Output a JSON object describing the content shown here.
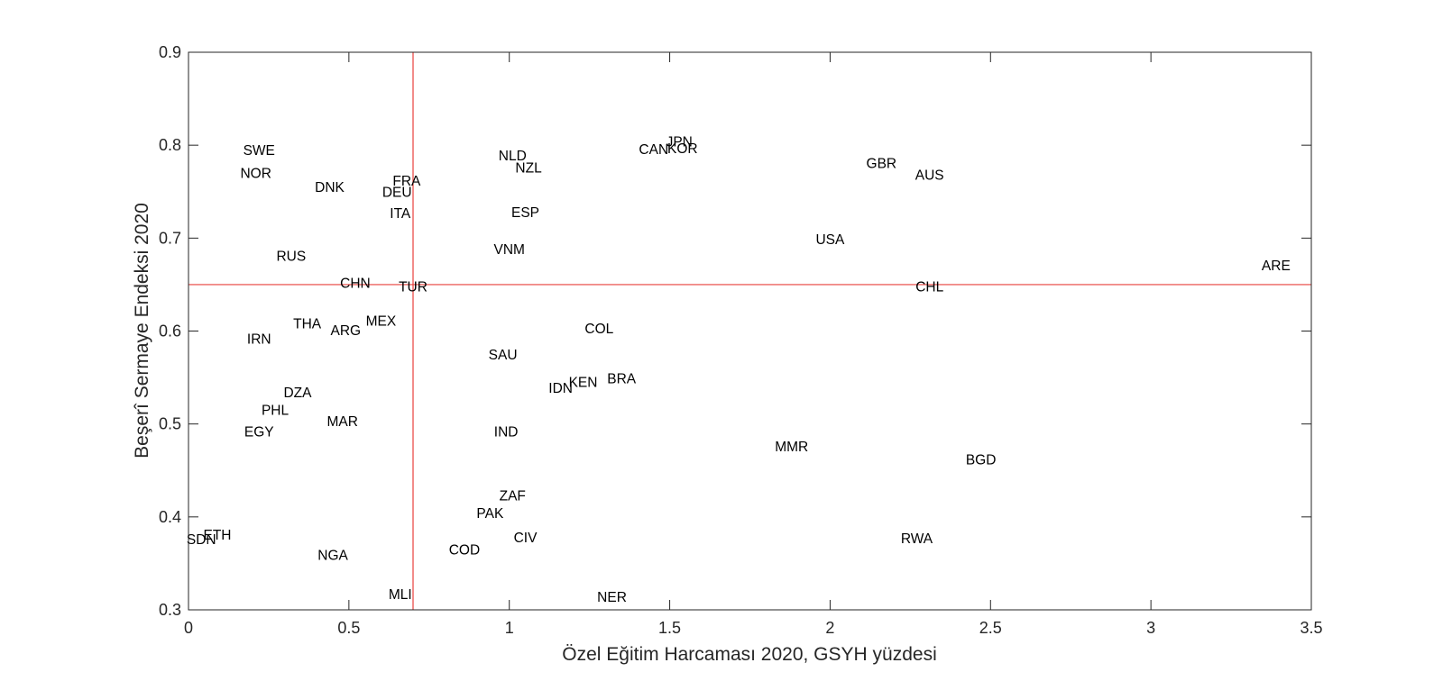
{
  "chart_data": {
    "type": "scatter",
    "title": "",
    "xlabel": "Özel Eğitim Harcaması 2020, GSYH yüzdesi",
    "ylabel": "Beşerî Sermaye Endeksi 2020",
    "xlim": [
      0,
      3.5
    ],
    "ylim": [
      0.3,
      0.9
    ],
    "x_ticks": [
      0,
      0.5,
      1,
      1.5,
      2,
      2.5,
      3,
      3.5
    ],
    "x_tick_labels": [
      "0",
      "0.5",
      "1",
      "1.5",
      "2",
      "2.5",
      "3",
      "3.5"
    ],
    "y_ticks": [
      0.3,
      0.4,
      0.5,
      0.6,
      0.7,
      0.8,
      0.9
    ],
    "y_tick_labels": [
      "0.3",
      "0.4",
      "0.5",
      "0.6",
      "0.7",
      "0.8",
      "0.9"
    ],
    "grid": false,
    "reference_lines": {
      "x": 0.7,
      "y": 0.65,
      "color": "#e8403c"
    },
    "label_color": "#000000",
    "points": [
      {
        "label": "SWE",
        "x": 0.22,
        "y": 0.795
      },
      {
        "label": "NOR",
        "x": 0.21,
        "y": 0.77
      },
      {
        "label": "DNK",
        "x": 0.44,
        "y": 0.755
      },
      {
        "label": "FRA",
        "x": 0.68,
        "y": 0.762
      },
      {
        "label": "DEU",
        "x": 0.65,
        "y": 0.75
      },
      {
        "label": "ITA",
        "x": 0.66,
        "y": 0.727
      },
      {
        "label": "RUS",
        "x": 0.32,
        "y": 0.681
      },
      {
        "label": "CHN",
        "x": 0.52,
        "y": 0.652
      },
      {
        "label": "TUR",
        "x": 0.7,
        "y": 0.648
      },
      {
        "label": "THA",
        "x": 0.37,
        "y": 0.608
      },
      {
        "label": "MEX",
        "x": 0.6,
        "y": 0.611
      },
      {
        "label": "ARG",
        "x": 0.49,
        "y": 0.601
      },
      {
        "label": "IRN",
        "x": 0.22,
        "y": 0.592
      },
      {
        "label": "DZA",
        "x": 0.34,
        "y": 0.534
      },
      {
        "label": "PHL",
        "x": 0.27,
        "y": 0.515
      },
      {
        "label": "MAR",
        "x": 0.48,
        "y": 0.503
      },
      {
        "label": "EGY",
        "x": 0.22,
        "y": 0.492
      },
      {
        "label": "ETH",
        "x": 0.09,
        "y": 0.381
      },
      {
        "label": "SDN",
        "x": 0.04,
        "y": 0.376
      },
      {
        "label": "NGA",
        "x": 0.45,
        "y": 0.359
      },
      {
        "label": "MLI",
        "x": 0.66,
        "y": 0.317
      },
      {
        "label": "NLD",
        "x": 1.01,
        "y": 0.789
      },
      {
        "label": "NZL",
        "x": 1.06,
        "y": 0.776
      },
      {
        "label": "ESP",
        "x": 1.05,
        "y": 0.728
      },
      {
        "label": "VNM",
        "x": 1.0,
        "y": 0.688
      },
      {
        "label": "SAU",
        "x": 0.98,
        "y": 0.575
      },
      {
        "label": "COL",
        "x": 1.28,
        "y": 0.603
      },
      {
        "label": "BRA",
        "x": 1.35,
        "y": 0.549
      },
      {
        "label": "KEN",
        "x": 1.23,
        "y": 0.545
      },
      {
        "label": "IDN",
        "x": 1.16,
        "y": 0.539
      },
      {
        "label": "IND",
        "x": 0.99,
        "y": 0.492
      },
      {
        "label": "ZAF",
        "x": 1.01,
        "y": 0.423
      },
      {
        "label": "PAK",
        "x": 0.94,
        "y": 0.404
      },
      {
        "label": "CIV",
        "x": 1.05,
        "y": 0.378
      },
      {
        "label": "COD",
        "x": 0.86,
        "y": 0.365
      },
      {
        "label": "NER",
        "x": 1.32,
        "y": 0.314
      },
      {
        "label": "JPN",
        "x": 1.53,
        "y": 0.804
      },
      {
        "label": "CAN",
        "x": 1.45,
        "y": 0.796
      },
      {
        "label": "KOR",
        "x": 1.54,
        "y": 0.797
      },
      {
        "label": "GBR",
        "x": 2.16,
        "y": 0.781
      },
      {
        "label": "AUS",
        "x": 2.31,
        "y": 0.768
      },
      {
        "label": "USA",
        "x": 2.0,
        "y": 0.699
      },
      {
        "label": "CHL",
        "x": 2.31,
        "y": 0.648
      },
      {
        "label": "ARE",
        "x": 3.39,
        "y": 0.671
      },
      {
        "label": "MMR",
        "x": 1.88,
        "y": 0.476
      },
      {
        "label": "BGD",
        "x": 2.47,
        "y": 0.462
      },
      {
        "label": "RWA",
        "x": 2.27,
        "y": 0.377
      }
    ]
  }
}
